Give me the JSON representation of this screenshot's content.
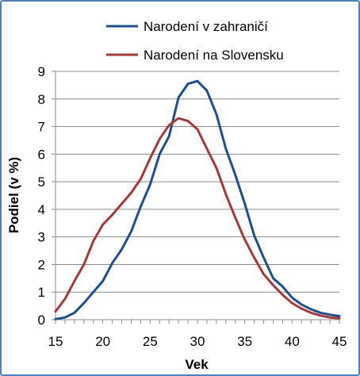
{
  "chart_data": {
    "type": "line",
    "xlabel": "Vek",
    "ylabel": "Podiel (v %)",
    "xlim": [
      15,
      45
    ],
    "ylim": [
      0,
      9
    ],
    "xticks": [
      15,
      20,
      25,
      30,
      35,
      40,
      45
    ],
    "yticks": [
      0,
      1,
      2,
      3,
      4,
      5,
      6,
      7,
      8,
      9
    ],
    "grid": true,
    "legend_position": "top-right",
    "x": [
      15,
      16,
      17,
      18,
      19,
      20,
      21,
      22,
      23,
      24,
      25,
      26,
      27,
      28,
      29,
      30,
      31,
      32,
      33,
      34,
      35,
      36,
      37,
      38,
      39,
      40,
      41,
      42,
      43,
      44,
      45
    ],
    "series": [
      {
        "name": "Narodení v zahraničí",
        "color": "#1f4e8c",
        "values": [
          0.02,
          0.08,
          0.25,
          0.6,
          1.0,
          1.4,
          2.05,
          2.55,
          3.2,
          4.1,
          4.9,
          6.0,
          6.65,
          8.05,
          8.55,
          8.65,
          8.3,
          7.45,
          6.2,
          5.25,
          4.2,
          3.05,
          2.25,
          1.5,
          1.2,
          0.8,
          0.55,
          0.38,
          0.25,
          0.18,
          0.13
        ]
      },
      {
        "name": "Narodení na Slovensku",
        "color": "#a33a3a",
        "values": [
          0.3,
          0.75,
          1.4,
          2.0,
          2.85,
          3.45,
          3.8,
          4.2,
          4.6,
          5.1,
          5.85,
          6.55,
          7.05,
          7.3,
          7.2,
          6.9,
          6.2,
          5.5,
          4.55,
          3.7,
          2.9,
          2.25,
          1.65,
          1.25,
          0.9,
          0.6,
          0.4,
          0.25,
          0.15,
          0.08,
          0.05
        ]
      }
    ]
  }
}
